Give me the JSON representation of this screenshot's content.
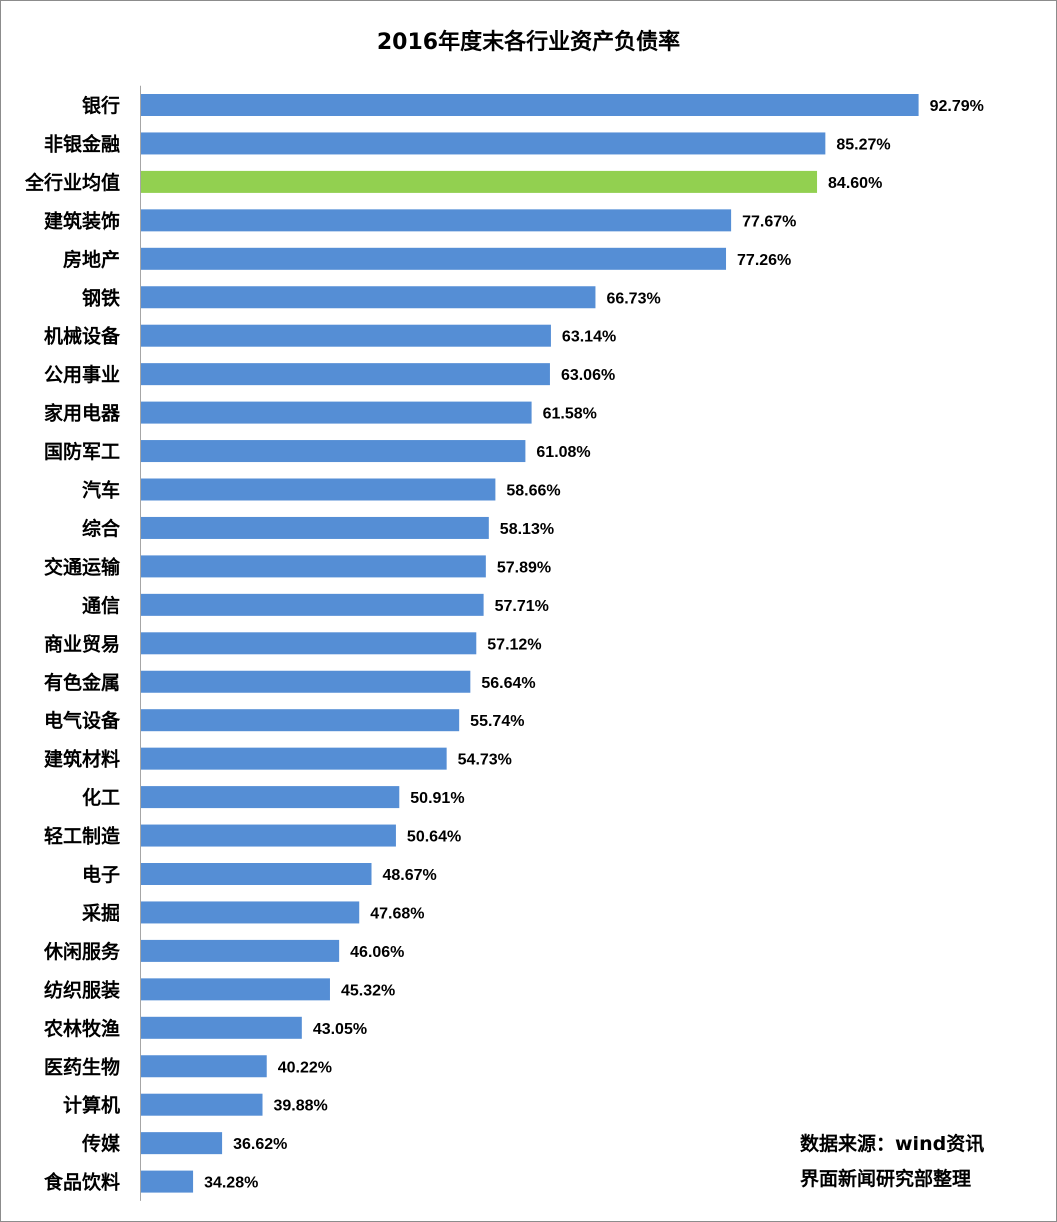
{
  "chart_data": {
    "type": "bar",
    "orientation": "horizontal",
    "title": "2016年度末各行业资产负债率",
    "categories": [
      "银行",
      "非银金融",
      "全行业均值",
      "建筑装饰",
      "房地产",
      "钢铁",
      "机械设备",
      "公用事业",
      "家用电器",
      "国防军工",
      "汽车",
      "综合",
      "交通运输",
      "通信",
      "商业贸易",
      "有色金属",
      "电气设备",
      "建筑材料",
      "化工",
      "轻工制造",
      "电子",
      "采掘",
      "休闲服务",
      "纺织服装",
      "农林牧渔",
      "医药生物",
      "计算机",
      "传媒",
      "食品饮料"
    ],
    "values": [
      92.79,
      85.27,
      84.6,
      77.67,
      77.26,
      66.73,
      63.14,
      63.06,
      61.58,
      61.08,
      58.66,
      58.13,
      57.89,
      57.71,
      57.12,
      56.64,
      55.74,
      54.73,
      50.91,
      50.64,
      48.67,
      47.68,
      46.06,
      45.32,
      43.05,
      40.22,
      39.88,
      36.62,
      34.28
    ],
    "data_labels": [
      "92.79%",
      "85.27%",
      "84.60%",
      "77.67%",
      "77.26%",
      "66.73%",
      "63.14%",
      "63.06%",
      "61.58%",
      "61.08%",
      "58.66%",
      "58.13%",
      "57.89%",
      "57.71%",
      "57.12%",
      "56.64%",
      "55.74%",
      "54.73%",
      "50.91%",
      "50.64%",
      "48.67%",
      "47.68%",
      "46.06%",
      "45.32%",
      "43.05%",
      "40.22%",
      "39.88%",
      "36.62%",
      "34.28%"
    ],
    "highlight_category": "全行业均值",
    "xlim": [
      30,
      100
    ],
    "grid": false,
    "legend": "none"
  },
  "colors": {
    "bar": "#558ED5",
    "highlight": "#92D050",
    "axis": "#a6a6a6",
    "text": "#000000"
  },
  "source": {
    "line1": "数据来源：wind资讯",
    "line2": "界面新闻研究部整理"
  }
}
